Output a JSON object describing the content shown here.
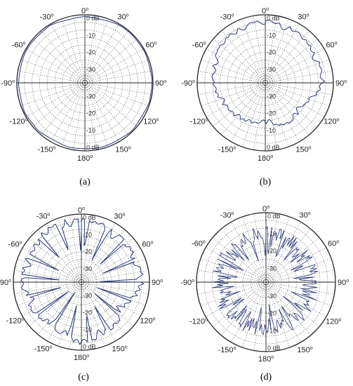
{
  "figure": {
    "panels": [
      "(a)",
      "(b)",
      "(c)",
      "(d)"
    ]
  },
  "chart_data": [
    {
      "type": "polar-line",
      "panel_label": "(a)",
      "angle_tick_labels": [
        "0°",
        "30°",
        "60°",
        "90°",
        "120°",
        "150°",
        "180°",
        "-150°",
        "-120°",
        "-90°",
        "-60°",
        "-30°"
      ],
      "radial_tick_labels": [
        "0 dB",
        "-10",
        "-20",
        "-30"
      ],
      "rlim_db": [
        -40,
        0
      ],
      "grid": true,
      "series": [
        {
          "pattern": "near-omnidirectional",
          "angle_deg": [
            0,
            30,
            60,
            90,
            120,
            150,
            180,
            210,
            240,
            270,
            300,
            330
          ],
          "gain_db": [
            -1,
            -0.5,
            -0.5,
            -0.5,
            -0.5,
            -0.5,
            -1,
            -1,
            -0.5,
            -1,
            -0.5,
            -0.5
          ]
        }
      ]
    },
    {
      "type": "polar-line",
      "panel_label": "(b)",
      "angle_tick_labels": [
        "0°",
        "30°",
        "60°",
        "90°",
        "120°",
        "150°",
        "180°",
        "-150°",
        "-120°",
        "-90°",
        "-60°",
        "-30°"
      ],
      "radial_tick_labels": [
        "0 dB",
        "-10",
        "-20",
        "-30"
      ],
      "rlim_db": [
        -40,
        0
      ],
      "grid": true,
      "series": [
        {
          "pattern": "irregular",
          "angle_deg": [
            0,
            30,
            60,
            90,
            120,
            150,
            180,
            210,
            240,
            270,
            300,
            330
          ],
          "gain_db": [
            -3,
            -4,
            -6,
            -5,
            -14,
            -12,
            -16,
            -14,
            -12,
            -9,
            -6,
            -4
          ]
        }
      ]
    },
    {
      "type": "polar-line",
      "panel_label": "(c)",
      "angle_tick_labels": [
        "0°",
        "30°",
        "60°",
        "90°",
        "120°",
        "150°",
        "180°",
        "-150°",
        "-120°",
        "-90°",
        "-60°",
        "-30°"
      ],
      "radial_tick_labels": [
        "0 dB",
        "-10",
        "-20",
        "-30"
      ],
      "rlim_db": [
        -40,
        0
      ],
      "grid": true,
      "series": [
        {
          "pattern": "deep-nulls",
          "angle_deg": [
            0,
            30,
            60,
            90,
            120,
            150,
            180,
            210,
            240,
            270,
            300,
            330
          ],
          "gain_db": [
            -2,
            -4,
            -4,
            -3,
            -10,
            -6,
            -3,
            -8,
            -6,
            -4,
            -4,
            -2
          ]
        }
      ]
    },
    {
      "type": "polar-line",
      "panel_label": "(d)",
      "angle_tick_labels": [
        "0°",
        "30°",
        "60°",
        "90°",
        "120°",
        "150°",
        "180°",
        "-150°",
        "-120°",
        "-90°",
        "-60°",
        "-30°"
      ],
      "radial_tick_labels": [
        "0 dB",
        "-10",
        "-20",
        "-30"
      ],
      "rlim_db": [
        -40,
        0
      ],
      "grid": true,
      "series": [
        {
          "pattern": "dense-spiky",
          "angle_deg": [
            0,
            30,
            60,
            90,
            120,
            150,
            180,
            210,
            240,
            270,
            300,
            330
          ],
          "gain_db": [
            -8,
            -8,
            -9,
            -8,
            -9,
            -8,
            -9,
            -8,
            -9,
            -8,
            -9,
            -8
          ]
        }
      ]
    }
  ],
  "style": {
    "trace_color": "#2b3a7a",
    "grid_color": "#555555",
    "outline_color": "#222222"
  }
}
